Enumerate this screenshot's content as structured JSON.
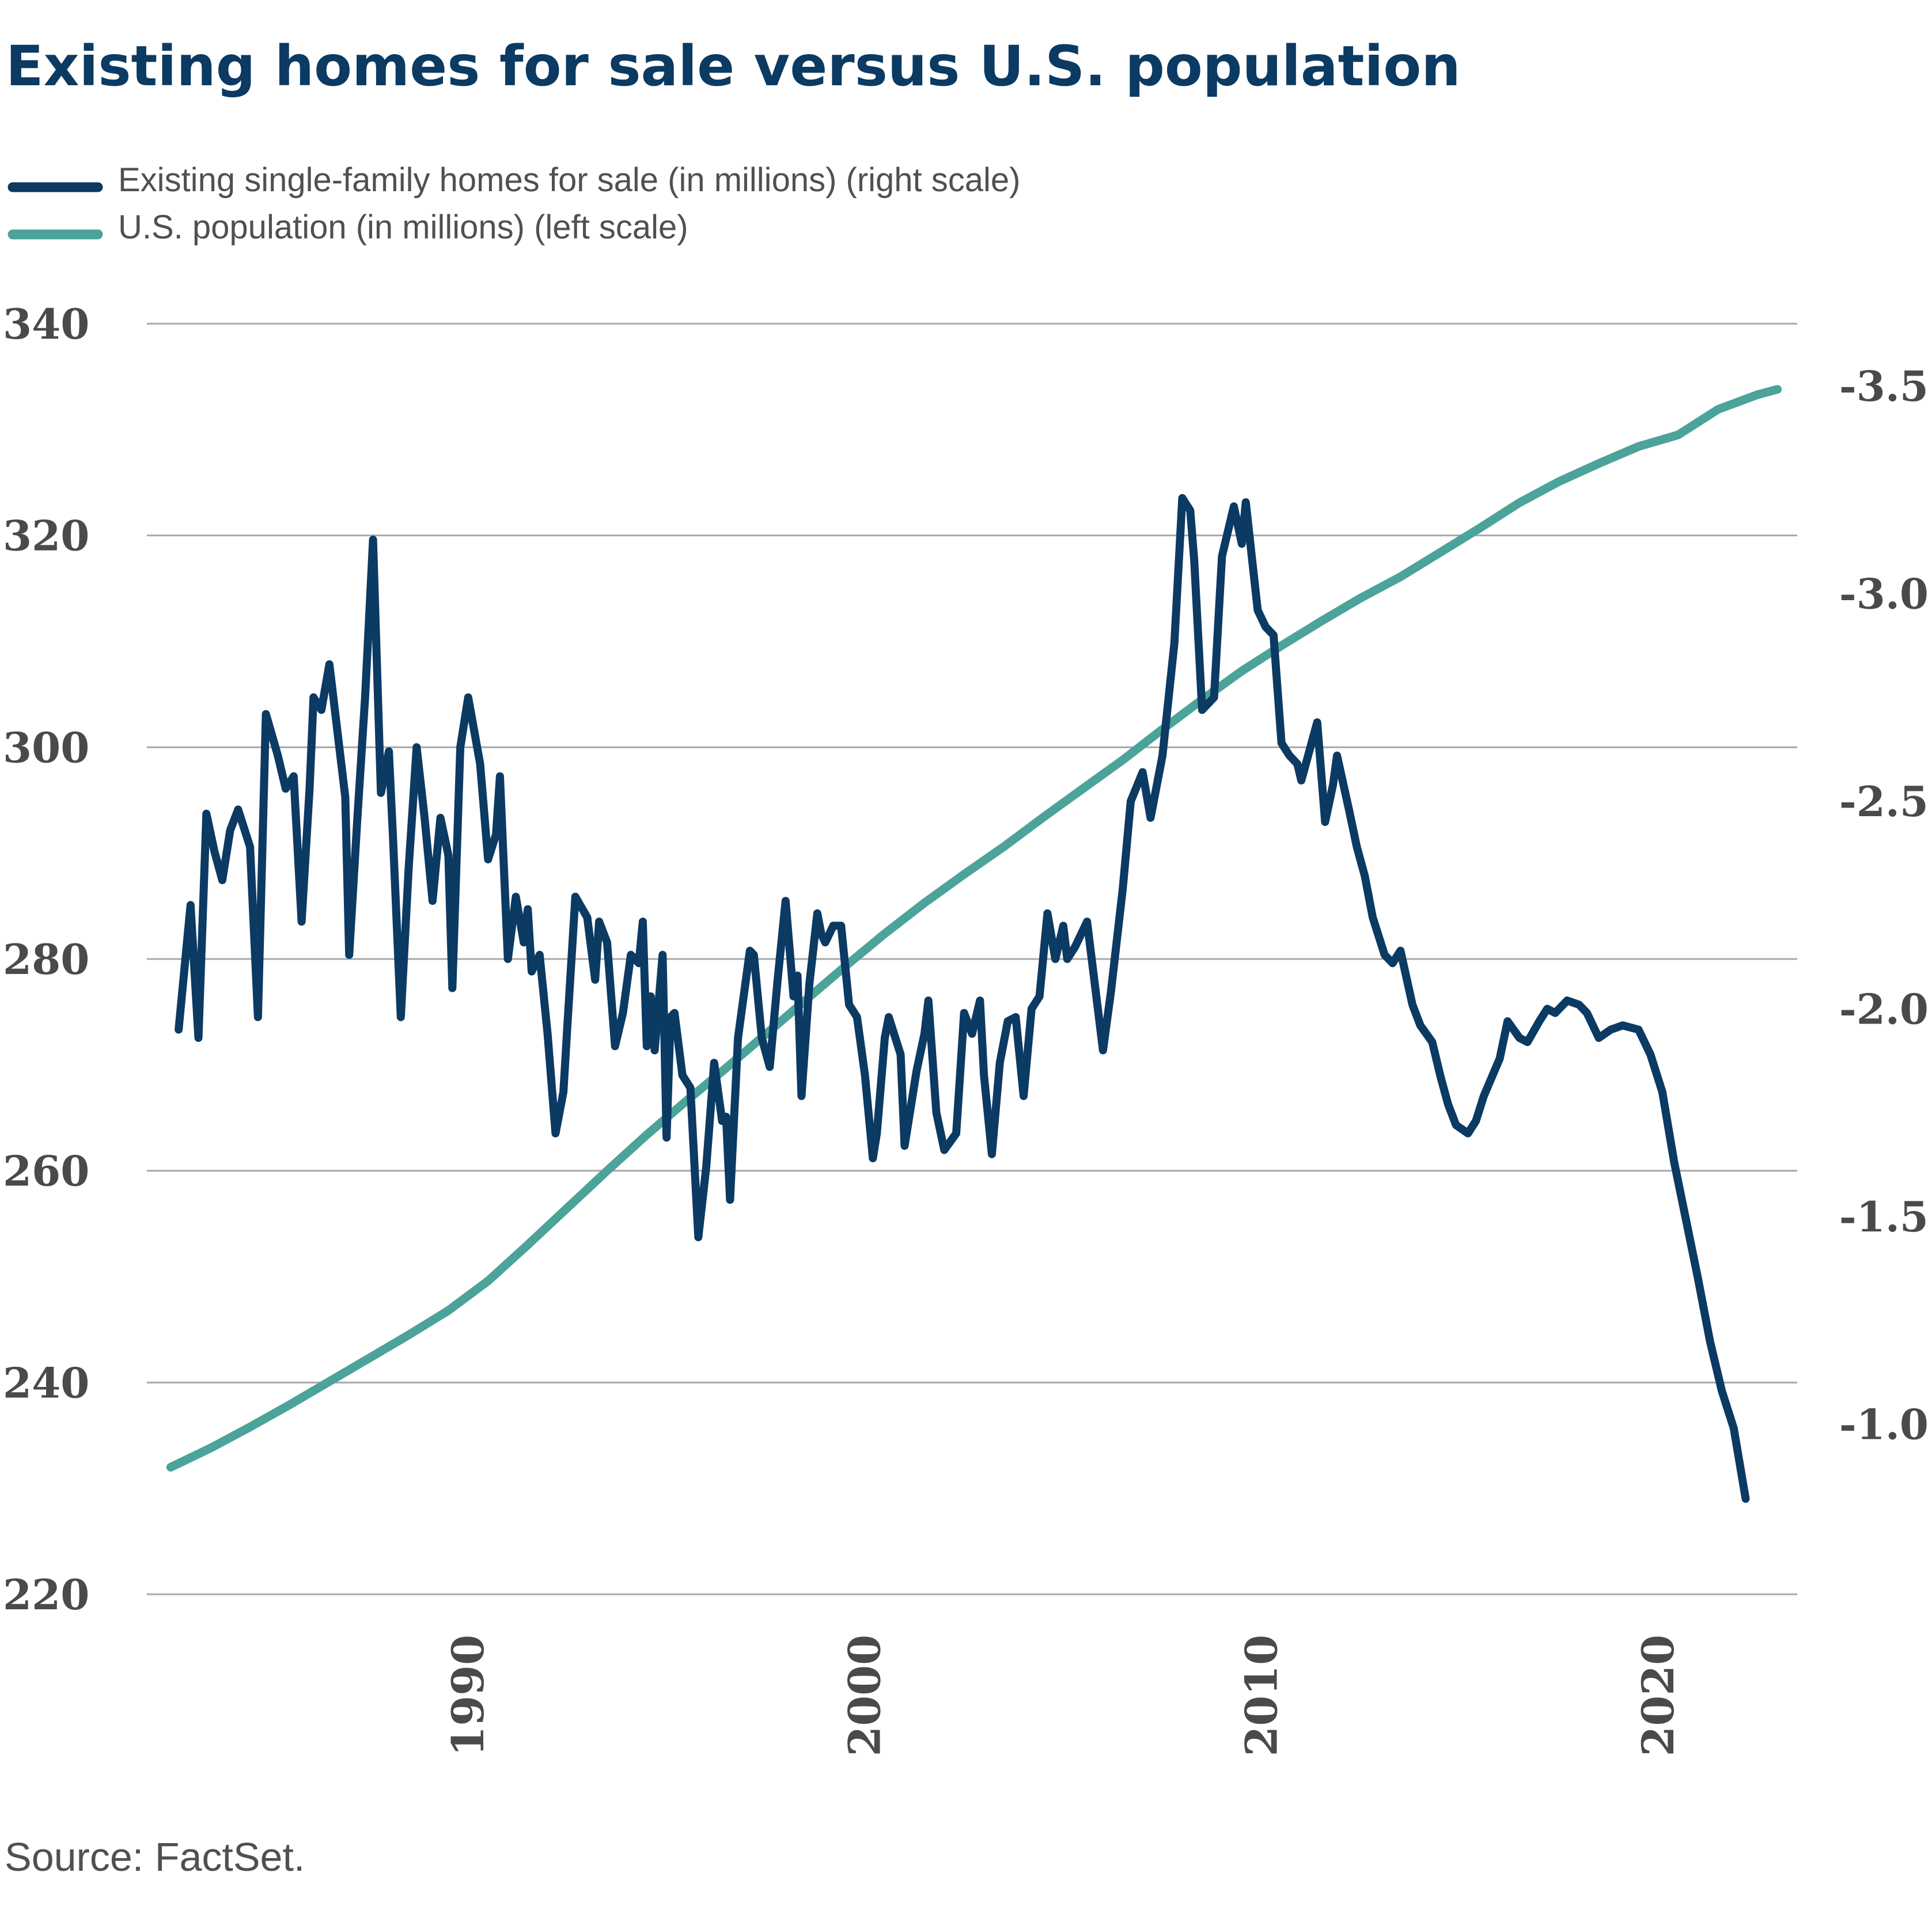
{
  "chart_data": {
    "type": "line",
    "title": "Existing homes for sale versus U.S. population",
    "source": "Source: FactSet.",
    "legend": {
      "placement": "top-left",
      "entries": [
        {
          "label": "Existing single-family homes for sale (in millions) (right scale)",
          "color": "#0b3a63"
        },
        {
          "label": "U.S. population (in millions) (left scale)",
          "color": "#4ba39a"
        }
      ]
    },
    "left_axis": {
      "ticks": [
        "340",
        "320",
        "300",
        "280",
        "260",
        "240",
        "220"
      ],
      "ylim": [
        220,
        340
      ]
    },
    "right_axis": {
      "ticks": [
        "-3.5",
        "-3.0",
        "-2.5",
        "-2.0",
        "-1.5",
        "-1.0"
      ],
      "ylim": [
        -0.59,
        -3.65
      ],
      "scale": "inverted (values increase downward)"
    },
    "x_axis": {
      "ticks": [
        "1990",
        "2000",
        "2010",
        "2020"
      ],
      "xlim": [
        1981.9,
        2023.5
      ]
    },
    "grid": "horizontal",
    "series": [
      {
        "name": "Existing single-family homes for sale (in millions) (right scale)",
        "axis": "right",
        "color": "#0b3a63",
        "points": [
          [
            1982.7,
            -1.95
          ],
          [
            1983.0,
            -2.25
          ],
          [
            1983.2,
            -1.93
          ],
          [
            1983.4,
            -2.47
          ],
          [
            1983.6,
            -2.38
          ],
          [
            1983.8,
            -2.31
          ],
          [
            1984.0,
            -2.43
          ],
          [
            1984.2,
            -2.48
          ],
          [
            1984.5,
            -2.39
          ],
          [
            1984.7,
            -1.98
          ],
          [
            1984.9,
            -2.71
          ],
          [
            1985.2,
            -2.61
          ],
          [
            1985.4,
            -2.53
          ],
          [
            1985.6,
            -2.56
          ],
          [
            1985.8,
            -2.21
          ],
          [
            1986.0,
            -2.53
          ],
          [
            1986.1,
            -2.75
          ],
          [
            1986.3,
            -2.72
          ],
          [
            1986.5,
            -2.83
          ],
          [
            1986.7,
            -2.67
          ],
          [
            1986.9,
            -2.51
          ],
          [
            1987.0,
            -2.13
          ],
          [
            1987.2,
            -2.45
          ],
          [
            1987.4,
            -2.75
          ],
          [
            1987.6,
            -3.13
          ],
          [
            1987.8,
            -2.52
          ],
          [
            1988.0,
            -2.62
          ],
          [
            1988.1,
            -2.42
          ],
          [
            1988.3,
            -1.98
          ],
          [
            1988.5,
            -2.34
          ],
          [
            1988.7,
            -2.63
          ],
          [
            1988.9,
            -2.46
          ],
          [
            1989.1,
            -2.26
          ],
          [
            1989.3,
            -2.46
          ],
          [
            1989.5,
            -2.37
          ],
          [
            1989.6,
            -2.05
          ],
          [
            1989.8,
            -2.63
          ],
          [
            1990.0,
            -2.75
          ],
          [
            1990.3,
            -2.59
          ],
          [
            1990.5,
            -2.36
          ],
          [
            1990.7,
            -2.42
          ],
          [
            1990.8,
            -2.56
          ],
          [
            1991.0,
            -2.12
          ],
          [
            1991.2,
            -2.27
          ],
          [
            1991.4,
            -2.16
          ],
          [
            1991.5,
            -2.24
          ],
          [
            1991.6,
            -2.09
          ],
          [
            1991.8,
            -2.13
          ],
          [
            1992.0,
            -1.94
          ],
          [
            1992.2,
            -1.7
          ],
          [
            1992.4,
            -1.8
          ],
          [
            1992.5,
            -1.96
          ],
          [
            1992.7,
            -2.27
          ],
          [
            1993.0,
            -2.22
          ],
          [
            1993.2,
            -2.07
          ],
          [
            1993.3,
            -2.21
          ],
          [
            1993.5,
            -2.16
          ],
          [
            1993.7,
            -1.91
          ],
          [
            1993.9,
            -1.99
          ],
          [
            1994.1,
            -2.13
          ],
          [
            1994.3,
            -2.11
          ],
          [
            1994.4,
            -2.21
          ],
          [
            1994.5,
            -1.91
          ],
          [
            1994.6,
            -2.03
          ],
          [
            1994.7,
            -1.9
          ],
          [
            1994.9,
            -2.13
          ],
          [
            1995.0,
            -1.69
          ],
          [
            1995.1,
            -1.98
          ],
          [
            1995.2,
            -1.99
          ],
          [
            1995.4,
            -1.84
          ],
          [
            1995.6,
            -1.81
          ],
          [
            1995.8,
            -1.45
          ],
          [
            1996.0,
            -1.62
          ],
          [
            1996.2,
            -1.87
          ],
          [
            1996.4,
            -1.73
          ],
          [
            1996.5,
            -1.74
          ],
          [
            1996.6,
            -1.54
          ],
          [
            1996.8,
            -1.93
          ],
          [
            1997.0,
            -2.07
          ],
          [
            1997.1,
            -2.14
          ],
          [
            1997.2,
            -2.13
          ],
          [
            1997.4,
            -1.93
          ],
          [
            1997.6,
            -1.86
          ],
          [
            1997.8,
            -2.07
          ],
          [
            1998.0,
            -2.26
          ],
          [
            1998.2,
            -2.03
          ],
          [
            1998.3,
            -2.08
          ],
          [
            1998.4,
            -1.79
          ],
          [
            1998.6,
            -2.06
          ],
          [
            1998.8,
            -2.23
          ],
          [
            1998.9,
            -2.18
          ],
          [
            1999.0,
            -2.16
          ],
          [
            1999.2,
            -2.2
          ],
          [
            1999.4,
            -2.2
          ],
          [
            1999.6,
            -2.01
          ],
          [
            1999.8,
            -1.98
          ],
          [
            2000.0,
            -1.84
          ],
          [
            2000.2,
            -1.64
          ],
          [
            2000.3,
            -1.7
          ],
          [
            2000.5,
            -1.93
          ],
          [
            2000.6,
            -1.98
          ],
          [
            2000.9,
            -1.89
          ],
          [
            2001.0,
            -1.67
          ],
          [
            2001.2,
            -1.79
          ],
          [
            2001.3,
            -1.85
          ],
          [
            2001.5,
            -1.94
          ],
          [
            2001.6,
            -2.02
          ],
          [
            2001.8,
            -1.75
          ],
          [
            2002.0,
            -1.66
          ],
          [
            2002.3,
            -1.7
          ],
          [
            2002.5,
            -1.99
          ],
          [
            2002.7,
            -1.94
          ],
          [
            2002.9,
            -2.02
          ],
          [
            2003.0,
            -1.84
          ],
          [
            2003.2,
            -1.65
          ],
          [
            2003.4,
            -1.87
          ],
          [
            2003.6,
            -1.97
          ],
          [
            2003.8,
            -1.98
          ],
          [
            2004.0,
            -1.79
          ],
          [
            2004.2,
            -2.0
          ],
          [
            2004.4,
            -2.03
          ],
          [
            2004.6,
            -2.23
          ],
          [
            2004.8,
            -2.12
          ],
          [
            2005.0,
            -2.2
          ],
          [
            2005.1,
            -2.12
          ],
          [
            2005.3,
            -2.15
          ],
          [
            2005.6,
            -2.21
          ],
          [
            2006.0,
            -1.9
          ],
          [
            2006.2,
            -2.04
          ],
          [
            2006.5,
            -2.29
          ],
          [
            2006.7,
            -2.5
          ],
          [
            2007.0,
            -2.57
          ],
          [
            2007.2,
            -2.46
          ],
          [
            2007.3,
            -2.51
          ],
          [
            2007.5,
            -2.61
          ],
          [
            2007.8,
            -2.88
          ],
          [
            2008.0,
            -3.23
          ],
          [
            2008.2,
            -3.2
          ],
          [
            2008.3,
            -3.08
          ],
          [
            2008.5,
            -2.72
          ],
          [
            2008.8,
            -2.75
          ],
          [
            2009.0,
            -3.09
          ],
          [
            2009.3,
            -3.21
          ],
          [
            2009.5,
            -3.12
          ],
          [
            2009.6,
            -3.22
          ],
          [
            2009.9,
            -2.96
          ],
          [
            2010.1,
            -2.92
          ],
          [
            2010.3,
            -2.9
          ],
          [
            2010.5,
            -2.64
          ],
          [
            2010.7,
            -2.61
          ],
          [
            2010.9,
            -2.59
          ],
          [
            2011.0,
            -2.55
          ],
          [
            2011.2,
            -2.62
          ],
          [
            2011.4,
            -2.69
          ],
          [
            2011.6,
            -2.45
          ],
          [
            2011.8,
            -2.54
          ],
          [
            2011.9,
            -2.61
          ],
          [
            2012.2,
            -2.48
          ],
          [
            2012.4,
            -2.39
          ],
          [
            2012.6,
            -2.32
          ],
          [
            2012.8,
            -2.22
          ],
          [
            2013.1,
            -2.13
          ],
          [
            2013.3,
            -2.11
          ],
          [
            2013.5,
            -2.14
          ],
          [
            2013.8,
            -2.01
          ],
          [
            2014.0,
            -1.96
          ],
          [
            2014.3,
            -1.92
          ],
          [
            2014.5,
            -1.84
          ],
          [
            2014.7,
            -1.77
          ],
          [
            2014.9,
            -1.72
          ],
          [
            2015.2,
            -1.7
          ],
          [
            2015.4,
            -1.73
          ],
          [
            2015.6,
            -1.79
          ],
          [
            2016.0,
            -1.88
          ],
          [
            2016.2,
            -1.97
          ],
          [
            2016.5,
            -1.93
          ],
          [
            2016.7,
            -1.92
          ],
          [
            2017.0,
            -1.97
          ],
          [
            2017.2,
            -2.0
          ],
          [
            2017.4,
            -1.99
          ],
          [
            2017.7,
            -2.02
          ],
          [
            2018.0,
            -2.01
          ],
          [
            2018.2,
            -1.99
          ],
          [
            2018.5,
            -1.93
          ],
          [
            2018.8,
            -1.95
          ],
          [
            2019.1,
            -1.96
          ],
          [
            2019.5,
            -1.95
          ],
          [
            2019.8,
            -1.89
          ],
          [
            2020.1,
            -1.8
          ],
          [
            2020.4,
            -1.63
          ],
          [
            2020.7,
            -1.49
          ],
          [
            2021.0,
            -1.35
          ],
          [
            2021.3,
            -1.2
          ],
          [
            2021.6,
            -1.08
          ],
          [
            2021.9,
            -0.99
          ],
          [
            2022.2,
            -0.82
          ]
        ]
      },
      {
        "name": "U.S. population (in millions) (left scale)",
        "axis": "left",
        "color": "#4ba39a",
        "points": [
          [
            1982.5,
            232
          ],
          [
            1983.5,
            233.8
          ],
          [
            1984.5,
            235.8
          ],
          [
            1985.5,
            237.9
          ],
          [
            1986.5,
            240.1
          ],
          [
            1987.5,
            242.3
          ],
          [
            1988.5,
            244.5
          ],
          [
            1989.5,
            246.8
          ],
          [
            1990.5,
            249.6
          ],
          [
            1991.5,
            253.0
          ],
          [
            1992.5,
            256.5
          ],
          [
            1993.5,
            260.0
          ],
          [
            1994.5,
            263.4
          ],
          [
            1995.5,
            266.6
          ],
          [
            1996.5,
            269.7
          ],
          [
            1997.5,
            272.9
          ],
          [
            1998.5,
            276.1
          ],
          [
            1999.5,
            279.3
          ],
          [
            2000.5,
            282.4
          ],
          [
            2001.5,
            285.3
          ],
          [
            2002.5,
            288.0
          ],
          [
            2003.5,
            290.6
          ],
          [
            2004.5,
            293.4
          ],
          [
            2005.5,
            296.1
          ],
          [
            2006.5,
            298.8
          ],
          [
            2007.5,
            301.7
          ],
          [
            2008.5,
            304.5
          ],
          [
            2009.5,
            307.2
          ],
          [
            2010.5,
            309.6
          ],
          [
            2011.5,
            311.9
          ],
          [
            2012.5,
            314.1
          ],
          [
            2013.5,
            316.1
          ],
          [
            2014.5,
            318.4
          ],
          [
            2015.5,
            320.7
          ],
          [
            2016.5,
            323.1
          ],
          [
            2017.5,
            325.1
          ],
          [
            2018.5,
            326.8
          ],
          [
            2019.5,
            328.4
          ],
          [
            2020.5,
            329.5
          ],
          [
            2021.5,
            331.9
          ],
          [
            2022.5,
            333.3
          ],
          [
            2023.0,
            333.8
          ]
        ]
      }
    ]
  }
}
